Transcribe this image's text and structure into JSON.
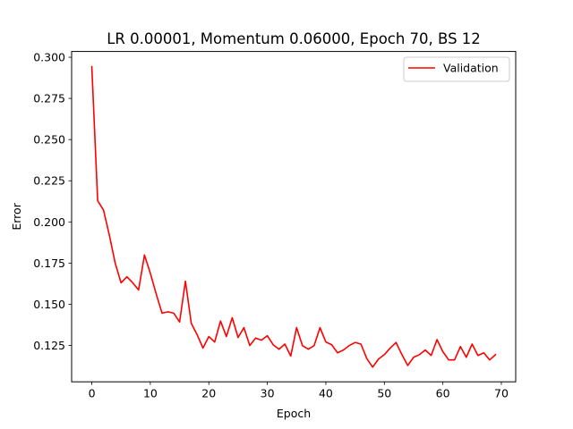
{
  "chart_data": {
    "type": "line",
    "title": "LR 0.00001, Momentum 0.06000, Epoch 70, BS 12",
    "xlabel": "Epoch",
    "ylabel": "Error",
    "xlim": [
      -3.45,
      72.45
    ],
    "ylim": [
      0.1029,
      0.3035
    ],
    "xticks": [
      0,
      10,
      20,
      30,
      40,
      50,
      60,
      70
    ],
    "xtick_labels": [
      "0",
      "10",
      "20",
      "30",
      "40",
      "50",
      "60",
      "70"
    ],
    "yticks": [
      0.125,
      0.15,
      0.175,
      0.2,
      0.225,
      0.25,
      0.275,
      0.3
    ],
    "ytick_labels": [
      "0.125",
      "0.150",
      "0.175",
      "0.200",
      "0.225",
      "0.250",
      "0.275",
      "0.300"
    ],
    "grid": false,
    "legend": {
      "position": "top-right",
      "entries": [
        "Validation"
      ]
    },
    "series": [
      {
        "name": "Validation",
        "color": "#ff0000",
        "x": [
          0,
          1,
          2,
          3,
          4,
          5,
          6,
          7,
          8,
          9,
          10,
          11,
          12,
          13,
          14,
          15,
          16,
          17,
          18,
          19,
          20,
          21,
          22,
          23,
          24,
          25,
          26,
          27,
          28,
          29,
          30,
          31,
          32,
          33,
          34,
          35,
          36,
          37,
          38,
          39,
          40,
          41,
          42,
          43,
          44,
          45,
          46,
          47,
          48,
          49,
          50,
          51,
          52,
          53,
          54,
          55,
          56,
          57,
          58,
          59,
          60,
          61,
          62,
          63,
          64,
          65,
          66,
          67,
          68,
          69
        ],
        "values": [
          0.2943,
          0.2129,
          0.2072,
          0.1919,
          0.1749,
          0.163,
          0.1667,
          0.163,
          0.1587,
          0.1799,
          0.1689,
          0.1563,
          0.1446,
          0.1454,
          0.1446,
          0.1392,
          0.164,
          0.1384,
          0.1315,
          0.1234,
          0.1304,
          0.1271,
          0.1398,
          0.1304,
          0.1418,
          0.1298,
          0.1358,
          0.1249,
          0.1295,
          0.1282,
          0.1309,
          0.1254,
          0.1227,
          0.1258,
          0.1185,
          0.1358,
          0.1249,
          0.1227,
          0.1249,
          0.1358,
          0.1271,
          0.1254,
          0.1205,
          0.1222,
          0.1249,
          0.1268,
          0.1258,
          0.117,
          0.1118,
          0.1167,
          0.1194,
          0.1234,
          0.1268,
          0.1194,
          0.1128,
          0.1178,
          0.1194,
          0.1222,
          0.1189,
          0.1285,
          0.1212,
          0.1162,
          0.1162,
          0.1243,
          0.1178,
          0.1258,
          0.1189,
          0.1205,
          0.1162,
          0.1194
        ]
      }
    ]
  }
}
